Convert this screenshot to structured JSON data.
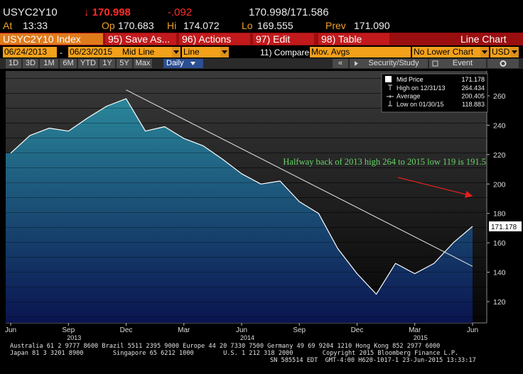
{
  "header": {
    "ticker": "USYC2Y10",
    "last": "↓ 170.998",
    "change": "-.092",
    "bid_ask": "170.998/171.586",
    "quote": [
      {
        "label": "At",
        "value": "13:33"
      },
      {
        "label": "Op",
        "value": "170.683"
      },
      {
        "label": "Hi",
        "value": "174.072"
      },
      {
        "label": "Lo",
        "value": "169.555"
      },
      {
        "label": "Prev",
        "value": "171.090"
      }
    ]
  },
  "toolbar": {
    "security": "USYC2Y10 Index",
    "actions": [
      "95) Save As...",
      "96) Actions",
      "97) Edit",
      "98) Table"
    ],
    "chart_type": "Line Chart",
    "start_date": "06/24/2013",
    "date_sep": "-",
    "end_date": "06/23/2015",
    "field": "Mid Line",
    "style": "Line",
    "compare": "11) Compare",
    "studies": "Mov. Avgs",
    "lower_chart": "No Lower Chart",
    "currency": "USD",
    "periods": [
      "1D",
      "3D",
      "1M",
      "6M",
      "YTD",
      "1Y",
      "5Y",
      "Max"
    ],
    "frequency": "Daily",
    "collapse": "«",
    "security_study": "Security/Study",
    "event": "Event"
  },
  "chart_data": {
    "type": "line",
    "x": [
      "2013-06",
      "2013-07",
      "2013-08",
      "2013-09",
      "2013-10",
      "2013-11",
      "2013-12",
      "2014-01",
      "2014-02",
      "2014-03",
      "2014-04",
      "2014-05",
      "2014-06",
      "2014-07",
      "2014-08",
      "2014-09",
      "2014-10",
      "2014-11",
      "2014-12",
      "2015-01",
      "2015-02",
      "2015-03",
      "2015-04",
      "2015-05",
      "2015-06"
    ],
    "series": [
      {
        "name": "Mid Price",
        "color": "#ffffff",
        "values": [
          221,
          233,
          238,
          236,
          245,
          253,
          258,
          236,
          239,
          231,
          226,
          217,
          207,
          200,
          202,
          188,
          180,
          156,
          139,
          125,
          146,
          139,
          146,
          160,
          171.178
        ]
      }
    ],
    "fill_colors": [
      "#2e95a3",
      "#0a1450"
    ],
    "ylim": [
      105.5,
      276.9
    ],
    "yticks": [
      120,
      140,
      160,
      180,
      200,
      220,
      240,
      260
    ],
    "xticks": [
      {
        "value": "2013-06",
        "label": "Jun"
      },
      {
        "value": "2013-09",
        "label": "Sep"
      },
      {
        "value": "2013-12",
        "label": "Dec"
      },
      {
        "value": "2014-03",
        "label": "Mar"
      },
      {
        "value": "2014-06",
        "label": "Jun"
      },
      {
        "value": "2014-09",
        "label": "Sep"
      },
      {
        "value": "2014-12",
        "label": "Dec"
      },
      {
        "value": "2015-03",
        "label": "Mar"
      },
      {
        "value": "2015-06",
        "label": "Jun"
      }
    ],
    "year_labels": [
      {
        "value": "2013-09",
        "label": "2013"
      },
      {
        "value": "2014-06",
        "label": "2014"
      },
      {
        "value": "2015-03",
        "label": "2015"
      }
    ],
    "annotation": "Halfway back of 2013 high 264 to 2015 low 119 is 191.5",
    "trendline": {
      "x": [
        "2013-12",
        "2015-06"
      ],
      "values": [
        264,
        144
      ]
    },
    "stats": [
      {
        "label": "High on 12/31/13",
        "value": "264.434"
      },
      {
        "label": "Average",
        "value": "200.405"
      },
      {
        "label": "Low on 01/30/15",
        "value": "118.883"
      }
    ]
  },
  "footer": {
    "lines": [
      "Australia 61 2 9777 8600 Brazil 5511 2395 9000 Europe 44 20 7330 7500 Germany 49 69 9204 1210 Hong Kong 852 2977 6000",
      "Japan 81 3 3201 8900        Singapore 65 6212 1000        U.S. 1 212 318 2000        Copyright 2015 Bloomberg Finance L.P.",
      "SN 585514 EDT  GMT-4:00 H620-1017-1 23-Jun-2015 13:33:17"
    ]
  }
}
